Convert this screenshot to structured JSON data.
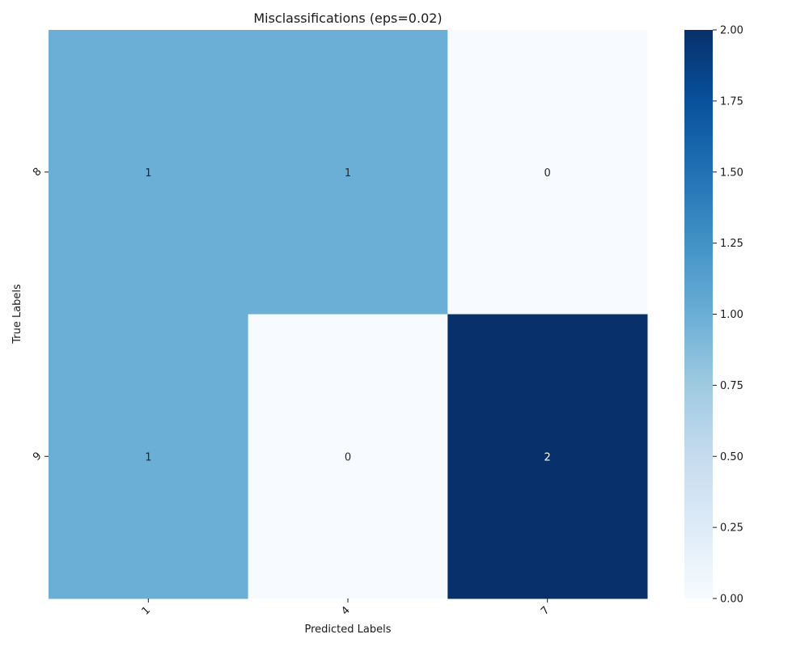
{
  "chart_data": {
    "type": "heatmap",
    "title": "Misclassifications (eps=0.02)",
    "xlabel": "Predicted Labels",
    "ylabel": "True Labels",
    "x_categories": [
      "1",
      "4",
      "7"
    ],
    "y_categories": [
      "8",
      "9"
    ],
    "values": [
      [
        1,
        1,
        0
      ],
      [
        1,
        0,
        2
      ]
    ],
    "annotations": [
      "1",
      "1",
      "0",
      "1",
      "0",
      "2"
    ],
    "colormap": "Blues",
    "vmin": 0,
    "vmax": 2,
    "colorbar_ticks": [
      "0.00",
      "0.25",
      "0.50",
      "0.75",
      "1.00",
      "1.25",
      "1.50",
      "1.75",
      "2.00"
    ],
    "colorbar_tick_values": [
      0,
      0.25,
      0.5,
      0.75,
      1.0,
      1.25,
      1.5,
      1.75,
      2.0
    ],
    "grid": false,
    "legend": "colorbar-right"
  }
}
